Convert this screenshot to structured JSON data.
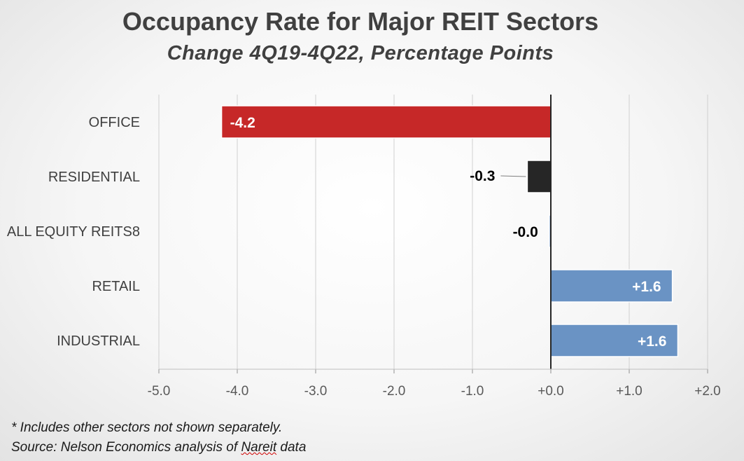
{
  "chart_data": {
    "type": "bar",
    "orientation": "horizontal",
    "title": "Occupancy Rate for Major REIT Sectors",
    "subtitle": "Change 4Q19-4Q22, Percentage Points",
    "categories": [
      "OFFICE",
      "RESIDENTIAL",
      "ALL EQUITY REITS8",
      "RETAIL",
      "INDUSTRIAL"
    ],
    "values": [
      -4.2,
      -0.3,
      -0.02,
      1.55,
      1.62
    ],
    "data_labels": [
      "-4.2",
      "-0.3",
      "-0.0",
      "+1.6",
      "+1.6"
    ],
    "bar_colors": [
      "#c62828",
      "#262626",
      "#6a93c4",
      "#6a93c4",
      "#6a93c4"
    ],
    "xlim": [
      -5.0,
      2.0
    ],
    "x_ticks": [
      "-5.0",
      "-4.0",
      "-3.0",
      "-2.0",
      "-1.0",
      "+0.0",
      "+1.0",
      "+2.0"
    ],
    "x_tick_values": [
      -5,
      -4,
      -3,
      -2,
      -1,
      0,
      1,
      2
    ],
    "grid": true,
    "xlabel": "",
    "ylabel": ""
  },
  "footnotes": {
    "note": "* Includes other sectors not shown separately.",
    "source_prefix": "Source: Nelson Economics analysis of ",
    "source_word": "Nareit",
    "source_suffix": " data"
  }
}
